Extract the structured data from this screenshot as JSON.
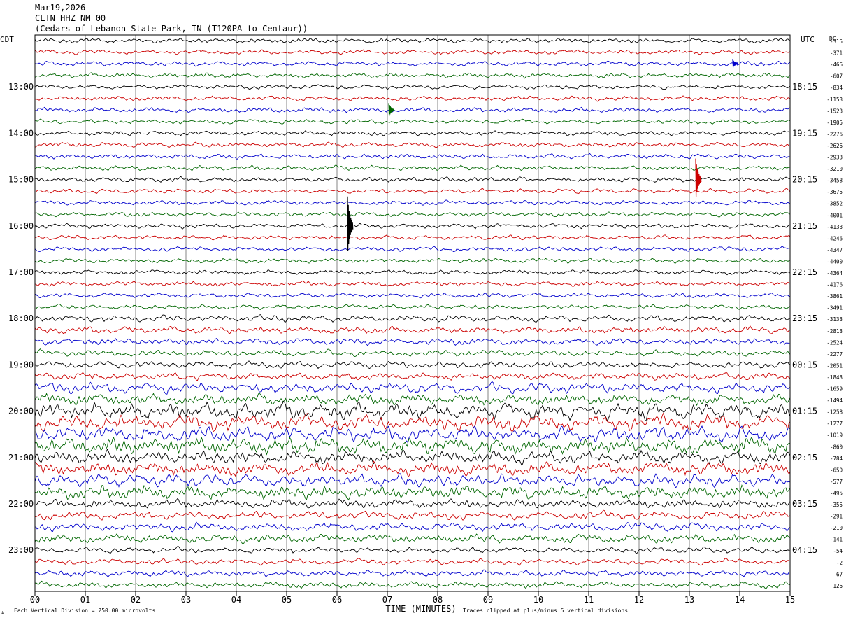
{
  "header": {
    "date": "Mar19,2026",
    "station": "CLTN HHZ NM 00",
    "location": "(Cedars of Lebanon State Park, TN (T120PA to Centaur))"
  },
  "chart_data": {
    "type": "line",
    "left_axis_label": "CDT",
    "right_axis_label": "UTC",
    "dc_label": "DC",
    "xlabel": "TIME (MINUTES)",
    "x_ticks": [
      "00",
      "01",
      "02",
      "03",
      "04",
      "05",
      "06",
      "07",
      "08",
      "09",
      "10",
      "11",
      "12",
      "13",
      "14",
      "15"
    ],
    "xlim": [
      0,
      15
    ],
    "trace_count": 48,
    "trace_colors": [
      "#000000",
      "#cc0000",
      "#0000cc",
      "#006600"
    ],
    "left_hour_labels": [
      "13:00",
      "14:00",
      "15:00",
      "16:00",
      "17:00",
      "18:00",
      "19:00",
      "20:00",
      "21:00",
      "22:00",
      "23:00"
    ],
    "right_hour_labels": [
      "18:15",
      "19:15",
      "20:15",
      "21:15",
      "22:15",
      "23:15",
      "00:15",
      "01:15",
      "02:15",
      "03:15",
      "04:15"
    ],
    "dc_offsets": [
      "-315",
      "-371",
      "-466",
      "-607",
      "-834",
      "-1153",
      "-1523",
      "-1905",
      "-2276",
      "-2626",
      "-2933",
      "-3210",
      "-3458",
      "-3675",
      "-3852",
      "-4001",
      "-4133",
      "-4246",
      "-4347",
      "-4400",
      "-4364",
      "-4176",
      "-3861",
      "-3491",
      "-3133",
      "-2813",
      "-2524",
      "-2277",
      "-2051",
      "-1843",
      "-1659",
      "-1494",
      "-1258",
      "-1277",
      "-1019",
      "-860",
      "-784",
      "-650",
      "-577",
      "-495",
      "-355",
      "-291",
      "-210",
      "-141",
      "-54",
      "-2",
      "67",
      "126"
    ],
    "footer_left": "Each Vertical Division =  250.00 microvolts",
    "footer_right": "Traces clipped at plus/minus 5 vertical divisions",
    "corner_mark": "A"
  }
}
